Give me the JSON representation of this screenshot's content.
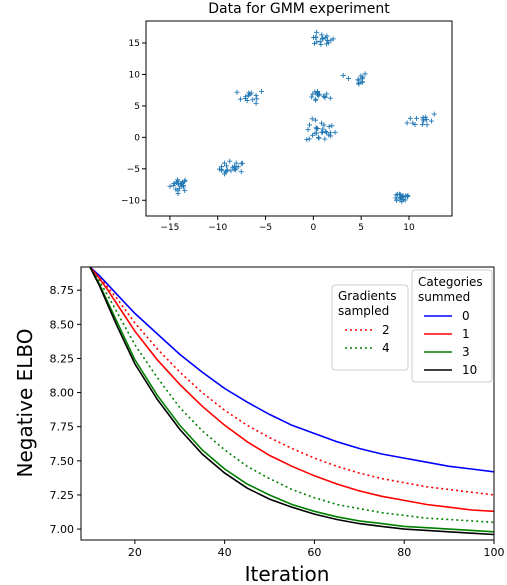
{
  "chart_data": [
    {
      "type": "scatter",
      "title": "Data for GMM experiment",
      "xlabel": "",
      "ylabel": "",
      "xlim": [
        -17.5,
        14.5
      ],
      "ylim": [
        -12.5,
        18.5
      ],
      "xticks": [
        -15,
        -10,
        -5,
        0,
        5,
        10
      ],
      "yticks": [
        -10,
        -5,
        0,
        5,
        10,
        15
      ],
      "marker": "+",
      "color": "#1f77b4",
      "clusters": [
        {
          "center": [
            -14.0,
            -7.5
          ],
          "spread": [
            0.8,
            0.9
          ],
          "count": 22
        },
        {
          "center": [
            -8.5,
            -5.0
          ],
          "spread": [
            1.1,
            1.0
          ],
          "count": 22
        },
        {
          "center": [
            -6.5,
            6.5
          ],
          "spread": [
            1.2,
            0.9
          ],
          "count": 14
        },
        {
          "center": [
            0.8,
            15.5
          ],
          "spread": [
            1.2,
            0.8
          ],
          "count": 18
        },
        {
          "center": [
            0.5,
            6.5
          ],
          "spread": [
            1.0,
            0.8
          ],
          "count": 16
        },
        {
          "center": [
            0.8,
            1.0
          ],
          "spread": [
            1.3,
            1.5
          ],
          "count": 28
        },
        {
          "center": [
            4.5,
            9.2
          ],
          "spread": [
            1.0,
            1.0
          ],
          "count": 12
        },
        {
          "center": [
            9.2,
            -9.5
          ],
          "spread": [
            0.9,
            0.7
          ],
          "count": 22
        },
        {
          "center": [
            11.5,
            2.8
          ],
          "spread": [
            1.3,
            1.0
          ],
          "count": 14
        }
      ]
    },
    {
      "type": "line",
      "xlabel": "Iteration",
      "ylabel": "Negative ELBO",
      "xlim": [
        8,
        100
      ],
      "ylim": [
        6.92,
        8.92
      ],
      "xticks": [
        20,
        40,
        60,
        80,
        100
      ],
      "yticks": [
        "7.00",
        "7.25",
        "7.50",
        "7.75",
        "8.00",
        "8.25",
        "8.50",
        "8.75"
      ],
      "x": [
        10,
        12,
        14,
        16,
        18,
        20,
        25,
        30,
        35,
        40,
        45,
        50,
        55,
        60,
        65,
        70,
        75,
        80,
        85,
        90,
        95,
        100
      ],
      "series_summed": [
        {
          "name": "0",
          "color": "#0000ff",
          "style": "solid",
          "values": [
            8.92,
            8.86,
            8.79,
            8.72,
            8.65,
            8.58,
            8.43,
            8.28,
            8.15,
            8.03,
            7.93,
            7.84,
            7.76,
            7.7,
            7.64,
            7.59,
            7.55,
            7.52,
            7.49,
            7.46,
            7.44,
            7.42
          ]
        },
        {
          "name": "1",
          "color": "#ff0000",
          "style": "solid",
          "values": [
            8.92,
            8.84,
            8.75,
            8.65,
            8.55,
            8.45,
            8.24,
            8.06,
            7.9,
            7.76,
            7.64,
            7.54,
            7.46,
            7.39,
            7.33,
            7.28,
            7.24,
            7.21,
            7.18,
            7.16,
            7.14,
            7.13
          ]
        },
        {
          "name": "3",
          "color": "#008000",
          "style": "solid",
          "values": [
            8.92,
            8.8,
            8.66,
            8.52,
            8.38,
            8.24,
            7.98,
            7.76,
            7.58,
            7.44,
            7.33,
            7.25,
            7.18,
            7.13,
            7.09,
            7.06,
            7.04,
            7.02,
            7.01,
            7.0,
            6.99,
            6.98
          ]
        },
        {
          "name": "10",
          "color": "#000000",
          "style": "solid",
          "values": [
            8.92,
            8.79,
            8.64,
            8.49,
            8.35,
            8.21,
            7.95,
            7.73,
            7.55,
            7.41,
            7.3,
            7.22,
            7.16,
            7.11,
            7.07,
            7.04,
            7.02,
            7.0,
            6.99,
            6.98,
            6.97,
            6.96
          ]
        }
      ],
      "series_sampled": [
        {
          "name": "2",
          "color": "#ff0000",
          "style": "dotted",
          "values": [
            8.92,
            8.85,
            8.77,
            8.69,
            8.6,
            8.51,
            8.32,
            8.15,
            8.0,
            7.87,
            7.76,
            7.67,
            7.59,
            7.52,
            7.46,
            7.41,
            7.37,
            7.34,
            7.31,
            7.29,
            7.27,
            7.25
          ]
        },
        {
          "name": "4",
          "color": "#008000",
          "style": "dotted",
          "values": [
            8.92,
            8.82,
            8.71,
            8.59,
            8.47,
            8.35,
            8.11,
            7.89,
            7.72,
            7.58,
            7.46,
            7.37,
            7.29,
            7.23,
            7.18,
            7.15,
            7.12,
            7.1,
            7.08,
            7.07,
            7.06,
            7.05
          ]
        }
      ],
      "legend_summed_title": "Categories\nsummed",
      "legend_sampled_title": "Gradients\nsampled",
      "legend_summed_placement": "top-right",
      "legend_sampled_placement": "top-right"
    }
  ]
}
